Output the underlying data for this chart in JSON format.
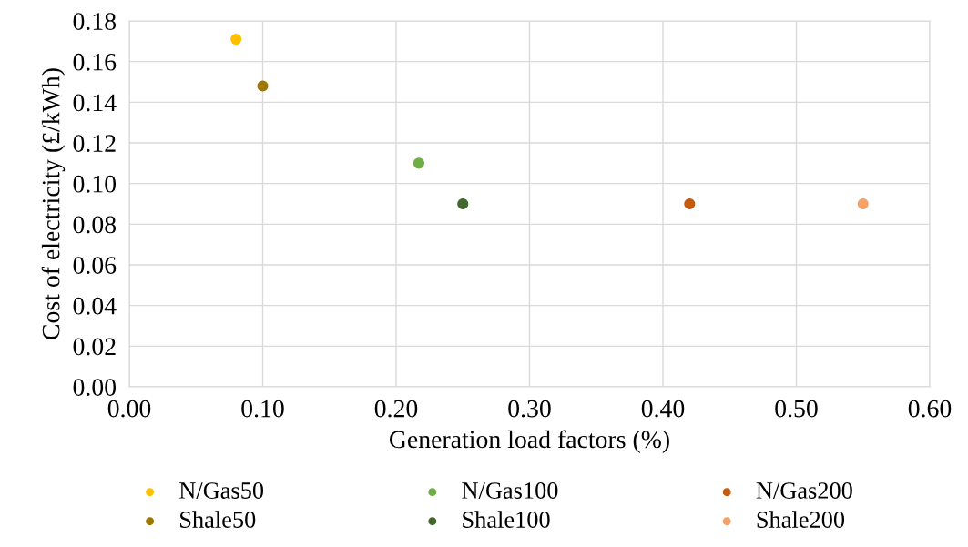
{
  "chart_data": {
    "type": "scatter",
    "xlabel": "Generation load factors (%)",
    "ylabel": "Cost of electricity (£/kWh)",
    "xlim": [
      0,
      0.6
    ],
    "xticks": [
      {
        "value": 0,
        "label": "0.00"
      },
      {
        "value": 0.1,
        "label": "0.10"
      },
      {
        "value": 0.2,
        "label": "0.20"
      },
      {
        "value": 0.3,
        "label": "0.30"
      },
      {
        "value": 0.4,
        "label": "0.40"
      },
      {
        "value": 0.5,
        "label": "0.50"
      },
      {
        "value": 0.6,
        "label": "0.60"
      }
    ],
    "ylim": [
      0,
      0.18
    ],
    "yticks": [
      {
        "value": 0,
        "label": "0.00"
      },
      {
        "value": 0.02,
        "label": "0.02"
      },
      {
        "value": 0.04,
        "label": "0.04"
      },
      {
        "value": 0.06,
        "label": "0.06"
      },
      {
        "value": 0.08,
        "label": "0.08"
      },
      {
        "value": 0.1,
        "label": "0.10"
      },
      {
        "value": 0.12,
        "label": "0.12"
      },
      {
        "value": 0.14,
        "label": "0.14"
      },
      {
        "value": 0.16,
        "label": "0.16"
      },
      {
        "value": 0.18,
        "label": "0.18"
      }
    ],
    "grid": true,
    "legend": "bottom",
    "marker": "circle",
    "series": [
      {
        "name": "N/Gas50",
        "color": "#ffc000",
        "x": [
          0.08
        ],
        "values": [
          0.171
        ]
      },
      {
        "name": "Shale50",
        "color": "#9e7800",
        "x": [
          0.1
        ],
        "values": [
          0.148
        ]
      },
      {
        "name": "N/Gas100",
        "color": "#70ad47",
        "x": [
          0.217
        ],
        "values": [
          0.11
        ]
      },
      {
        "name": "Shale100",
        "color": "#43682b",
        "x": [
          0.25
        ],
        "values": [
          0.09
        ]
      },
      {
        "name": "N/Gas200",
        "color": "#c55a11",
        "x": [
          0.42
        ],
        "values": [
          0.09
        ]
      },
      {
        "name": "Shale200",
        "color": "#f4a16a",
        "x": [
          0.55
        ],
        "values": [
          0.09
        ]
      }
    ]
  }
}
